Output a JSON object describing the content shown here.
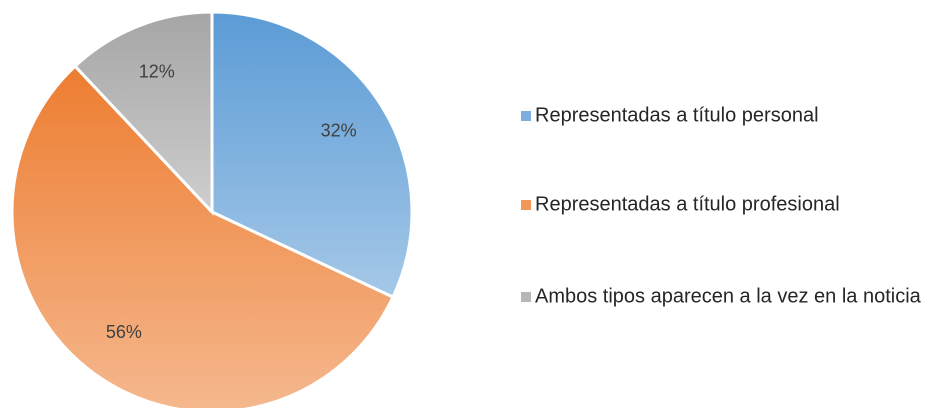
{
  "chart_data": {
    "type": "pie",
    "categories": [
      "Representadas a título personal",
      "Representadas a título profesional",
      "Ambos tipos aparecen a la vez en la noticia"
    ],
    "values": [
      32,
      56,
      12
    ],
    "value_labels": [
      "32%",
      "56%",
      "12%"
    ],
    "colors": [
      "#5b9bd5",
      "#ed7d31",
      "#a5a5a5"
    ],
    "legend": "right"
  }
}
